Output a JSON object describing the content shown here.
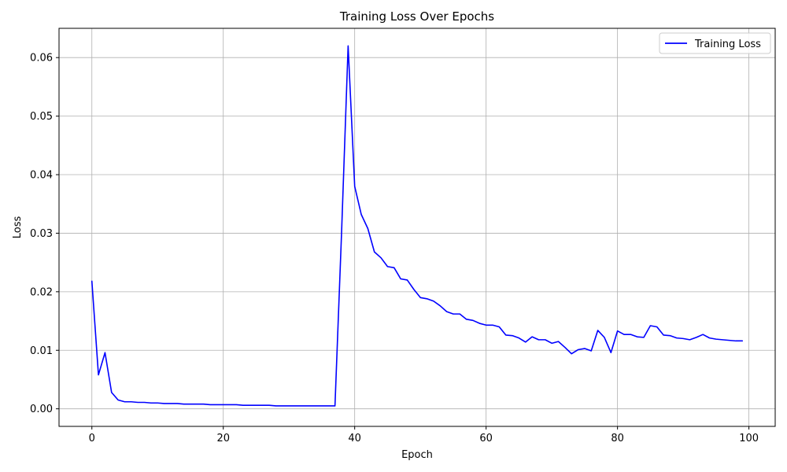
{
  "chart_data": {
    "type": "line",
    "title": "Training Loss Over Epochs",
    "xlabel": "Epoch",
    "ylabel": "Loss",
    "xlim": [
      -5,
      104
    ],
    "ylim": [
      -0.003,
      0.065
    ],
    "grid": true,
    "legend_position": "top-right",
    "x_ticks": [
      0,
      20,
      40,
      60,
      80,
      100
    ],
    "x_tick_labels": [
      "0",
      "20",
      "40",
      "60",
      "80",
      "100"
    ],
    "y_ticks": [
      0.0,
      0.01,
      0.02,
      0.03,
      0.04,
      0.05,
      0.06
    ],
    "y_tick_labels": [
      "0.00",
      "0.01",
      "0.02",
      "0.03",
      "0.04",
      "0.05",
      "0.06"
    ],
    "series": [
      {
        "name": "Training Loss",
        "color": "#0000ff",
        "x": [
          0,
          1,
          2,
          3,
          4,
          5,
          6,
          7,
          8,
          9,
          10,
          11,
          12,
          13,
          14,
          15,
          16,
          17,
          18,
          19,
          20,
          21,
          22,
          23,
          24,
          25,
          26,
          27,
          28,
          29,
          30,
          31,
          32,
          33,
          34,
          35,
          36,
          37,
          38,
          39,
          40,
          41,
          42,
          43,
          44,
          45,
          46,
          47,
          48,
          49,
          50,
          51,
          52,
          53,
          54,
          55,
          56,
          57,
          58,
          59,
          60,
          61,
          62,
          63,
          64,
          65,
          66,
          67,
          68,
          69,
          70,
          71,
          72,
          73,
          74,
          75,
          76,
          77,
          78,
          79,
          80,
          81,
          82,
          83,
          84,
          85,
          86,
          87,
          88,
          89,
          90,
          91,
          92,
          93,
          94,
          95,
          96,
          97,
          98,
          99
        ],
        "y": [
          0.0218,
          0.0058,
          0.0096,
          0.0028,
          0.0015,
          0.0012,
          0.0012,
          0.0011,
          0.0011,
          0.001,
          0.001,
          0.0009,
          0.0009,
          0.0009,
          0.0008,
          0.0008,
          0.0008,
          0.0008,
          0.0007,
          0.0007,
          0.0007,
          0.0007,
          0.0007,
          0.0006,
          0.0006,
          0.0006,
          0.0006,
          0.0006,
          0.0005,
          0.0005,
          0.0005,
          0.0005,
          0.0005,
          0.0005,
          0.0005,
          0.0005,
          0.0005,
          0.0005,
          0.03,
          0.062,
          0.038,
          0.0332,
          0.0308,
          0.0268,
          0.0258,
          0.0243,
          0.0241,
          0.0222,
          0.022,
          0.0204,
          0.019,
          0.0188,
          0.0184,
          0.0176,
          0.0166,
          0.0162,
          0.0162,
          0.0153,
          0.0151,
          0.0146,
          0.0143,
          0.0143,
          0.014,
          0.0126,
          0.0125,
          0.0121,
          0.0114,
          0.0123,
          0.0118,
          0.0118,
          0.0112,
          0.0115,
          0.0105,
          0.0094,
          0.0101,
          0.0103,
          0.0099,
          0.0134,
          0.0122,
          0.0096,
          0.0133,
          0.0127,
          0.0127,
          0.0123,
          0.0122,
          0.0142,
          0.014,
          0.0126,
          0.0125,
          0.0121,
          0.012,
          0.0118,
          0.0122,
          0.0127,
          0.0121,
          0.0119,
          0.0118,
          0.0117,
          0.0116,
          0.0116
        ]
      }
    ]
  }
}
